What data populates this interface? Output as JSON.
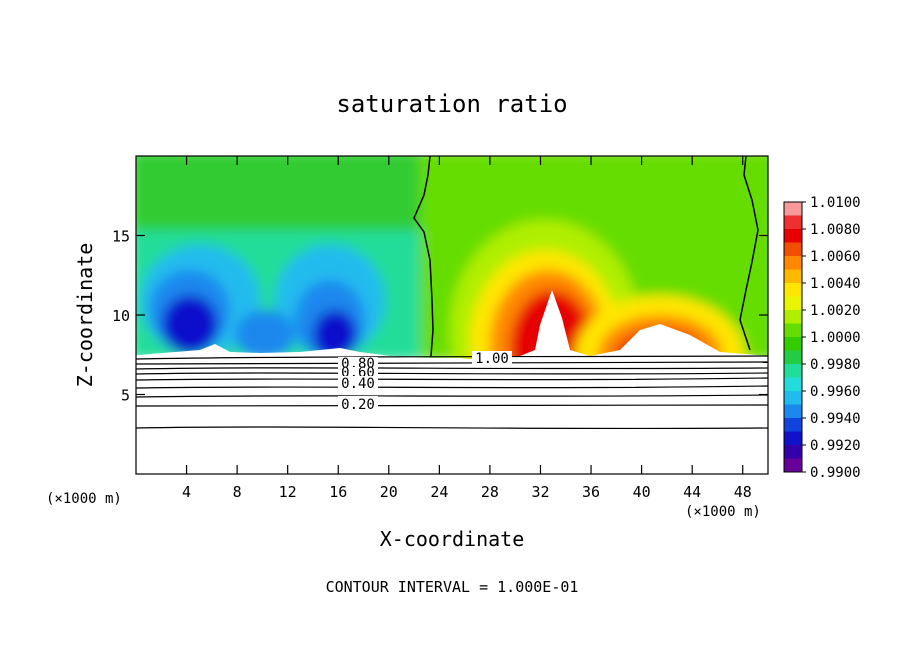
{
  "chart_data": {
    "type": "contour",
    "title": "saturation ratio",
    "xlabel": "X-coordinate",
    "ylabel": "Z-coordinate",
    "x_unit": "(×1000 m)",
    "z_unit": "(×1000 m)",
    "xlim": [
      0,
      50
    ],
    "ylim": [
      0,
      20
    ],
    "x_ticks": [
      4,
      8,
      12,
      16,
      20,
      24,
      28,
      32,
      36,
      40,
      44,
      48
    ],
    "y_ticks": [
      5,
      10,
      15
    ],
    "colorbar": {
      "levels": [
        "1.0100",
        "1.0080",
        "1.0060",
        "1.0040",
        "1.0020",
        "1.0000",
        "0.9980",
        "0.9960",
        "0.9940",
        "0.9920",
        "0.9900"
      ],
      "colors": [
        "#f79a9a",
        "#ee3030",
        "#e60000",
        "#f05000",
        "#ff8800",
        "#ffb800",
        "#ffe600",
        "#e9f500",
        "#b0ee00",
        "#66dd00",
        "#33cc00",
        "#22cc44",
        "#22dd99",
        "#22dcdc",
        "#22bbee",
        "#1b88ee",
        "#1144dd",
        "#1111cc",
        "#3300aa",
        "#660099"
      ]
    },
    "contour_lines": {
      "labels": [
        "1.00",
        "0.80",
        "0.60",
        "0.40",
        "0.20"
      ],
      "interval": "CONTOUR INTERVAL = 1.000E-01"
    }
  }
}
